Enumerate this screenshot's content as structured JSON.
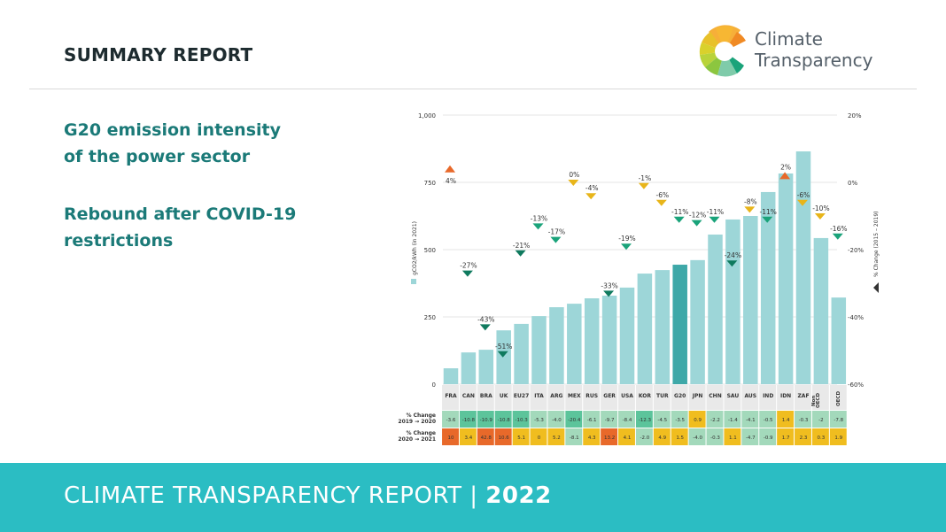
{
  "header": {
    "title": "SUMMARY REPORT",
    "logo_line1": "Climate",
    "logo_line2": "Transparency"
  },
  "side": {
    "heading1_line1": "G20 emission intensity",
    "heading1_line2": "of the power sector",
    "heading2_line1": "Rebound after COVID-19",
    "heading2_line2": "restrictions"
  },
  "footer": {
    "text": "CLIMATE TRANSPARENCY REPORT",
    "separator": "|",
    "year": "2022"
  },
  "colors": {
    "bar": "#9dd6d8",
    "bar_highlight": "#3ea8a8",
    "accent_teal": "#1b7a78",
    "footer_bg": "#2bbdc3",
    "marker_up": "#e8692a",
    "marker_yellow": "#e8b51a",
    "marker_green": "#1aa37a",
    "marker_darkgreen": "#0f7a5e",
    "cell_red": "#e8692a",
    "cell_yellow": "#f0bd1f",
    "cell_lightgreen": "#a3d9bb",
    "cell_green": "#5cc49b"
  },
  "chart_data": {
    "type": "bar",
    "title": "",
    "ylabel": "gCO2/kWh (in 2021)",
    "y2label": "% Change (2015 – 2019)",
    "ylim": [
      0,
      1000
    ],
    "y2lim": [
      -60,
      20
    ],
    "yticks": [
      "0",
      "250",
      "500",
      "750",
      "1,000"
    ],
    "y2ticks": [
      "-60%",
      "-40%",
      "-20%",
      "0%",
      "20%"
    ],
    "grid": true,
    "categories": [
      "FRA",
      "CAN",
      "BRA",
      "UK",
      "EU27",
      "ITA",
      "ARG",
      "MEX",
      "RUS",
      "GER",
      "USA",
      "KOR",
      "TUR",
      "G20",
      "JPN",
      "CHN",
      "SAU",
      "AUS",
      "IND",
      "IDN",
      "ZAF",
      "Non OECD",
      "OECD"
    ],
    "highlight": "G20",
    "series": [
      {
        "name": "gCO2/kWh (in 2021)",
        "values": [
          59,
          118,
          128,
          200,
          224,
          253,
          286,
          299,
          319,
          329,
          359,
          411,
          424,
          444,
          461,
          556,
          612,
          625,
          714,
          783,
          865,
          543,
          322
        ]
      },
      {
        "name": "% Change (2015 – 2019)",
        "values": [
          4,
          -27,
          -43,
          -51,
          -21,
          -13,
          -17,
          0,
          -4,
          -33,
          -19,
          -1,
          -6,
          -11,
          -12,
          -11,
          -24,
          -8,
          -11,
          2,
          -6,
          -10,
          -16
        ],
        "labels": [
          "4%",
          "-27%",
          "-43%",
          "-51%",
          "-21%",
          "-13%",
          "-17%",
          "0%",
          "-4%",
          "-33%",
          "-19%",
          "-1%",
          "-6%",
          "-11%",
          "-12%",
          "-11%",
          "-24%",
          "-8%",
          "-11%",
          "2%",
          "-6%",
          "-10%",
          "-16%"
        ]
      }
    ],
    "table": {
      "row_labels": [
        [
          "% Change",
          "2019 → 2020"
        ],
        [
          "% Change",
          "2020 → 2021"
        ]
      ],
      "rows": [
        [
          "-3.6",
          "-10.8",
          "-10.9",
          "-10.8",
          "-10.3",
          "-5.3",
          "-4.0",
          "-20.4",
          "-6.1",
          "-9.7",
          "-8.4",
          "-12.3",
          "-4.5",
          "-3.5",
          "0.9",
          "-2.2",
          "-1.4",
          "-4.1",
          "-0.5",
          "1.4",
          "-0.3",
          "-2",
          "-7.8"
        ],
        [
          "10",
          "3.4",
          "42.8",
          "10.6",
          "5.1",
          "0",
          "5.2",
          "-8.1",
          "4.3",
          "13.2",
          "4.1",
          "-2.0",
          "4.9",
          "1.5",
          "-4.0",
          "-0.3",
          "1.1",
          "-4.7",
          "-0.9",
          "1.7",
          "2.3",
          "0.3",
          "1.9"
        ]
      ]
    }
  }
}
